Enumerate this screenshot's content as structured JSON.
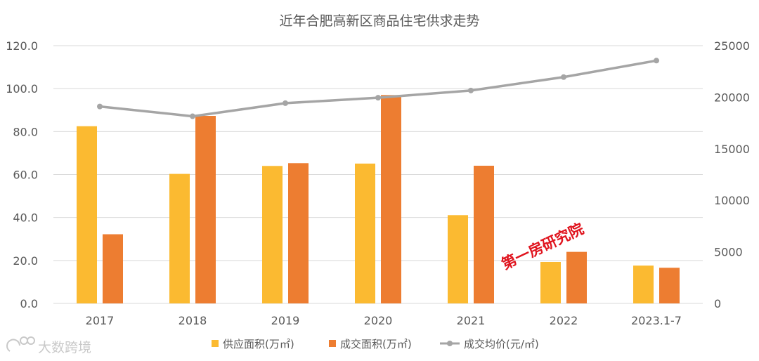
{
  "chart_data": {
    "type": "bar",
    "title": "近年合肥高新区商品住宅供求走势",
    "categories": [
      "2017",
      "2018",
      "2019",
      "2020",
      "2021",
      "2022",
      "2023.1-7"
    ],
    "series": [
      {
        "name": "供应面积(万㎡)",
        "type": "bar",
        "axis": "left",
        "color": "#FBBA31",
        "values": [
          82.5,
          60.3,
          64.0,
          65.1,
          41.1,
          19.3,
          17.6
        ]
      },
      {
        "name": "成交面积(万㎡)",
        "type": "bar",
        "axis": "left",
        "color": "#ED7D31",
        "values": [
          32.2,
          87.3,
          65.3,
          97.0,
          64.1,
          24.0,
          16.6
        ]
      },
      {
        "name": "成交均价(元/㎡)",
        "type": "line",
        "axis": "right",
        "color": "#A5A5A5",
        "values": [
          19100,
          18150,
          19420,
          19950,
          20650,
          21950,
          23550
        ]
      }
    ],
    "y_left": {
      "min": 0,
      "max": 120,
      "step": 20,
      "tick_labels": [
        "0.0",
        "20.0",
        "40.0",
        "60.0",
        "80.0",
        "100.0",
        "120.0"
      ]
    },
    "y_right": {
      "min": 0,
      "max": 25000,
      "step": 5000,
      "tick_labels": [
        "0",
        "5000",
        "10000",
        "15000",
        "20000",
        "25000"
      ]
    },
    "grid": true,
    "legend_position": "bottom"
  },
  "stamp_text": "第一房研究院",
  "watermark_text": "大数跨境"
}
